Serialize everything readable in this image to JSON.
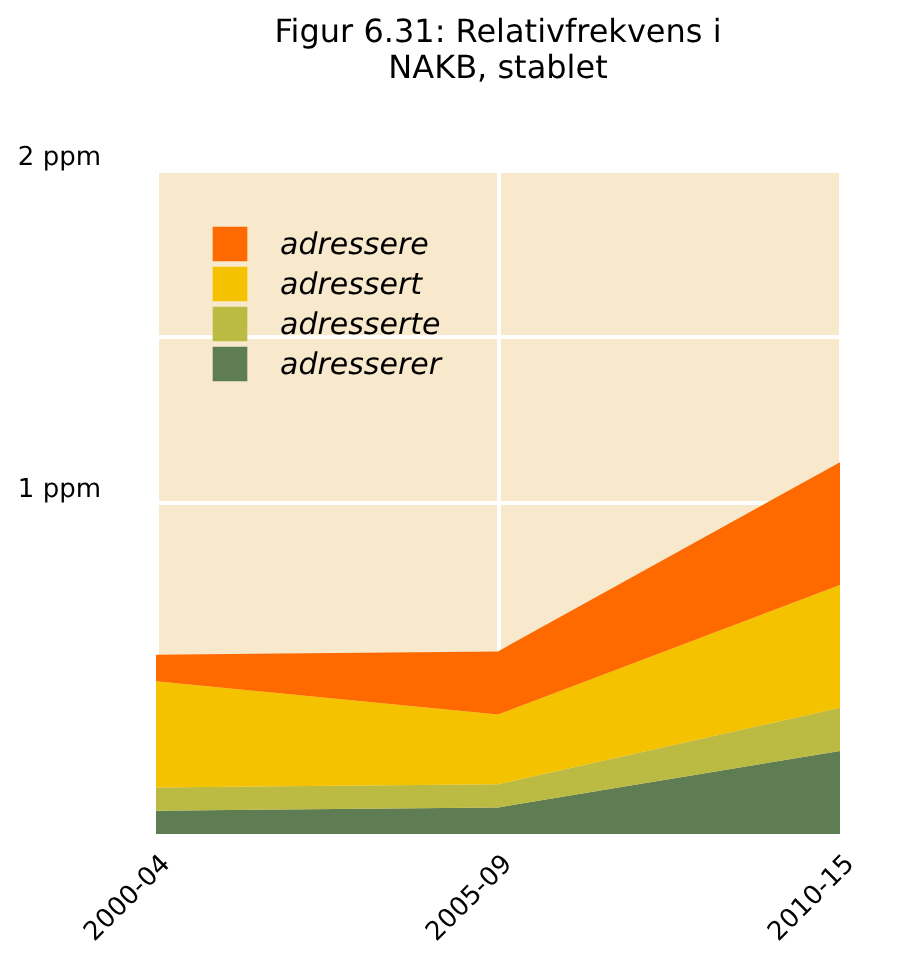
{
  "chart_data": {
    "type": "area",
    "title": "Figur 6.31: Relativfrekvens i NAKB, stablet",
    "stacked": true,
    "categories": [
      "2000-04",
      "2005-09",
      "2010-15"
    ],
    "series": [
      {
        "name": "adresserer",
        "color": "#5e7d52",
        "values": [
          0.07,
          0.08,
          0.25
        ]
      },
      {
        "name": "adresserte",
        "color": "#bbbb44",
        "values": [
          0.07,
          0.07,
          0.13
        ]
      },
      {
        "name": "adressert",
        "color": "#f5c200",
        "values": [
          0.32,
          0.21,
          0.37
        ]
      },
      {
        "name": "adressere",
        "color": "#ff6a00",
        "values": [
          0.08,
          0.19,
          0.37
        ]
      }
    ],
    "ylim": [
      0,
      2
    ],
    "yticks": [
      {
        "value": 1,
        "label": "1 ppm"
      },
      {
        "value": 1.5,
        "label": null
      },
      {
        "value": 2,
        "label": "2 ppm"
      }
    ],
    "grid": true,
    "legend": "top left"
  }
}
